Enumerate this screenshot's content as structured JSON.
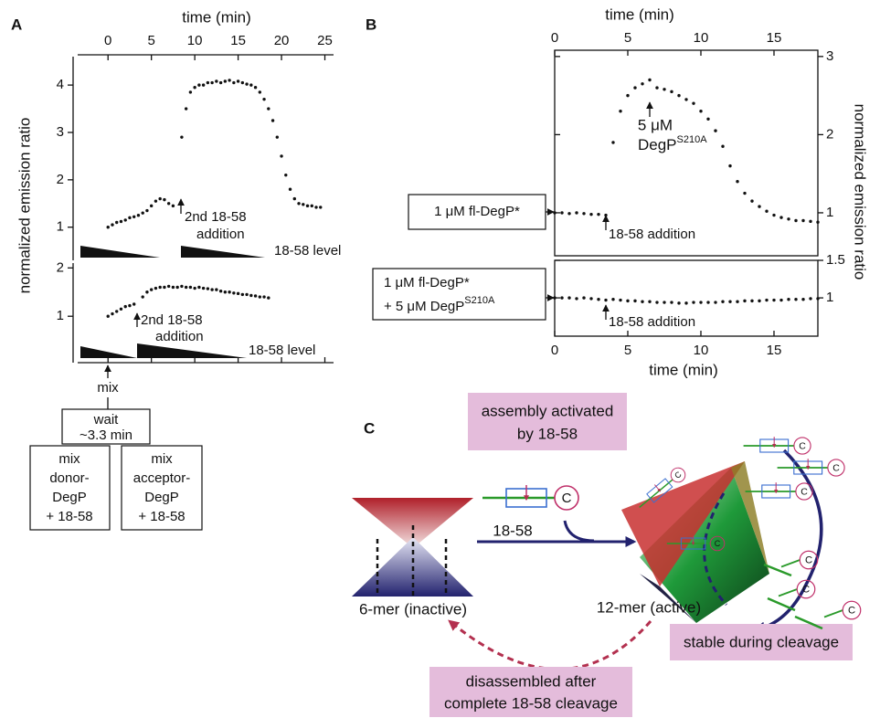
{
  "panel_labels": [
    "A",
    "B",
    "C"
  ],
  "chart_data": [
    {
      "type": "scatter",
      "xlabel": "time (min)",
      "ylabel": "normalized emission ratio",
      "color": "#111111",
      "x": [
        0,
        0.5,
        1,
        1.5,
        2,
        2.5,
        3,
        3.5,
        4,
        4.5,
        5,
        5.5,
        6,
        6.5,
        7,
        7.5,
        8,
        8.5,
        9,
        9.5,
        10,
        10.5,
        11,
        11.5,
        12,
        12.5,
        13,
        13.5,
        14,
        14.5,
        15,
        15.5,
        16,
        16.5,
        17,
        17.5,
        18,
        18.5,
        19,
        19.5,
        20,
        20.5,
        21,
        21.5,
        22,
        22.5,
        23,
        23.5,
        24,
        24.5
      ],
      "values": [
        1,
        1.05,
        1.1,
        1.12,
        1.15,
        1.2,
        1.22,
        1.25,
        1.3,
        1.35,
        1.45,
        1.55,
        1.6,
        1.58,
        1.5,
        1.45,
        null,
        2.9,
        3.5,
        3.85,
        3.95,
        4,
        4,
        4.05,
        4.05,
        4.08,
        4.05,
        4.08,
        4.1,
        4.05,
        4.08,
        4.05,
        4.02,
        4,
        3.95,
        3.85,
        3.7,
        3.5,
        3.25,
        2.9,
        2.5,
        2.1,
        1.8,
        1.6,
        1.5,
        1.48,
        1.45,
        1.45,
        1.42,
        1.42
      ],
      "xlim": [
        -3.5,
        26
      ],
      "xticks": [
        0,
        5,
        10,
        15,
        20,
        25
      ],
      "ylim": [
        0.3,
        4.6
      ],
      "yticks": [
        1,
        2,
        3,
        4
      ],
      "annotations": [
        "2nd 18-58",
        "addition",
        "18-58 level"
      ]
    },
    {
      "type": "scatter",
      "color": "#111111",
      "x": [
        0,
        0.5,
        1,
        1.5,
        2,
        2.5,
        3,
        3.5,
        4,
        4.5,
        5,
        5.5,
        6,
        6.5,
        7,
        7.5,
        8,
        8.5,
        9,
        9.5,
        10,
        10.5,
        11,
        11.5,
        12,
        12.5,
        13,
        13.5,
        14,
        14.5,
        15,
        15.5,
        16,
        16.5,
        17,
        17.5,
        18,
        18.5
      ],
      "values": [
        1,
        1.05,
        1.1,
        1.15,
        1.2,
        1.22,
        1.25,
        null,
        1.4,
        1.5,
        1.55,
        1.58,
        1.6,
        1.6,
        1.62,
        1.6,
        1.6,
        1.62,
        1.6,
        1.6,
        1.58,
        1.6,
        1.58,
        1.57,
        1.55,
        1.55,
        1.52,
        1.5,
        1.5,
        1.48,
        1.47,
        1.45,
        1.45,
        1.43,
        1.42,
        1.4,
        1.4,
        1.38
      ],
      "xlim": [
        -3.5,
        26
      ],
      "xticks": [
        0,
        5,
        10,
        15,
        20,
        25
      ],
      "ylim": [
        0.04,
        2.1
      ],
      "yticks": [
        1,
        2
      ],
      "annotations": [
        "2nd 18-58",
        "addition",
        "18-58 level"
      ]
    },
    {
      "type": "scatter",
      "xlabel": "time  (min)",
      "ylabel": "normalized emission ratio",
      "color": "#111111",
      "x": [
        0,
        0.5,
        1,
        1.5,
        2,
        2.5,
        3,
        3.5,
        4,
        4.5,
        5,
        5.5,
        6,
        6.5,
        7,
        7.5,
        8,
        8.5,
        9,
        9.5,
        10,
        10.5,
        11,
        11.5,
        12,
        12.5,
        13,
        13.5,
        14,
        14.5,
        15,
        15.5,
        16,
        16.5,
        17,
        17.5,
        18
      ],
      "values": [
        1,
        1,
        0.99,
        1,
        0.99,
        0.98,
        0.98,
        0.97,
        1.9,
        2.3,
        2.5,
        2.6,
        2.65,
        2.7,
        2.6,
        2.58,
        2.55,
        2.5,
        2.45,
        2.4,
        2.3,
        2.2,
        2.05,
        1.85,
        1.6,
        1.4,
        1.25,
        1.15,
        1.08,
        1.02,
        0.97,
        0.94,
        0.92,
        0.9,
        0.9,
        0.89,
        0.88
      ],
      "xlim": [
        0,
        18
      ],
      "xticks": [
        0,
        5,
        10,
        15
      ],
      "ylim": [
        0.45,
        3.08
      ],
      "yticks": [
        1,
        2,
        3
      ],
      "input": "1 μM fl-DegP*",
      "annotations": {
        "dose": "5 μM",
        "protein": "DegP",
        "protein_sup": "S210A",
        "addition": "18-58 addition"
      }
    },
    {
      "type": "scatter",
      "xlabel": "time  (min)",
      "color": "#111111",
      "x": [
        0,
        0.5,
        1,
        1.5,
        2,
        2.5,
        3,
        3.5,
        4,
        4.5,
        5,
        5.5,
        6,
        6.5,
        7,
        7.5,
        8,
        8.5,
        9,
        9.5,
        10,
        10.5,
        11,
        11.5,
        12,
        12.5,
        13,
        13.5,
        14,
        14.5,
        15,
        15.5,
        16,
        16.5,
        17,
        17.5,
        18
      ],
      "values": [
        1,
        1,
        1,
        0.99,
        1,
        0.99,
        0.98,
        0.97,
        0.98,
        0.97,
        0.96,
        0.96,
        0.95,
        0.95,
        0.94,
        0.94,
        0.94,
        0.93,
        0.93,
        0.94,
        0.94,
        0.94,
        0.94,
        0.95,
        0.95,
        0.95,
        0.96,
        0.96,
        0.96,
        0.97,
        0.97,
        0.97,
        0.98,
        0.98,
        0.98,
        0.99,
        0.99
      ],
      "xlim": [
        0,
        18
      ],
      "xticks": [
        0,
        5,
        10,
        15
      ],
      "ylim": [
        0.49,
        1.5
      ],
      "yticks": [
        1,
        1.5
      ],
      "input": [
        "1 μM fl-DegP*",
        "+ 5 μM DegP",
        "S210A"
      ],
      "annotations": {
        "addition": "18-58 addition"
      }
    }
  ],
  "flow": {
    "mix": "mix",
    "wait": [
      "wait",
      "~3.3 min"
    ],
    "left_box": [
      "mix",
      "donor-",
      "DegP",
      "+ 18-58"
    ],
    "right_box": [
      "mix",
      "acceptor-",
      "DegP",
      "+ 18-58"
    ]
  },
  "diagram": {
    "top_box": [
      "assembly activated",
      "by 18-58"
    ],
    "substrate": "18-58",
    "terminus": "C",
    "inactive": "6-mer (inactive)",
    "active": "12-mer (active)",
    "stable": "stable during cleavage",
    "bottom_box": [
      "disassembled after",
      "complete 18-58 cleavage"
    ]
  }
}
